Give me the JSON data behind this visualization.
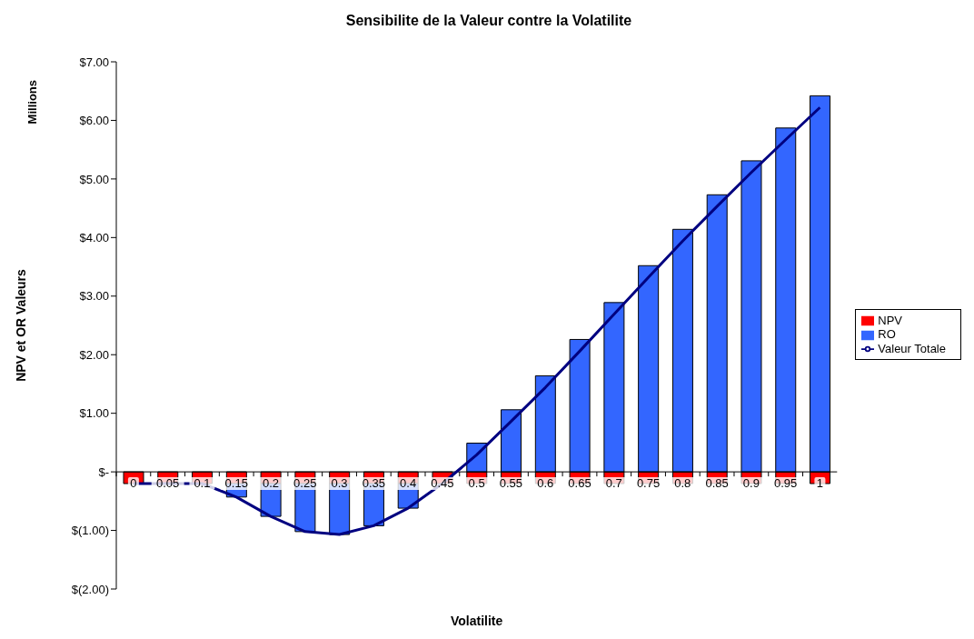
{
  "chart_data": {
    "type": "bar",
    "title": "Sensibilite de la Valeur contre la Volatilite",
    "xlabel": "Volatilite",
    "ylabel": "NPV et OR Valeurs",
    "annotations": [
      "Millions"
    ],
    "categories": [
      "0",
      "0.05",
      "0.1",
      "0.15",
      "0.2",
      "0.25",
      "0.3",
      "0.35",
      "0.4",
      "0.45",
      "0.5",
      "0.55",
      "0.6",
      "0.65",
      "0.7",
      "0.75",
      "0.8",
      "0.85",
      "0.9",
      "0.95",
      "1"
    ],
    "stacked": true,
    "series": [
      {
        "name": "NPV",
        "color": "#ff0000",
        "values": [
          -0.2,
          -0.2,
          -0.2,
          -0.2,
          -0.2,
          -0.2,
          -0.2,
          -0.2,
          -0.2,
          -0.2,
          -0.2,
          -0.2,
          -0.2,
          -0.2,
          -0.2,
          -0.2,
          -0.2,
          -0.2,
          -0.2,
          -0.2,
          -0.2
        ]
      },
      {
        "name": "RO",
        "color": "#3366ff",
        "values": [
          0,
          0,
          0,
          -0.23,
          -0.56,
          -0.82,
          -0.87,
          -0.72,
          -0.42,
          0,
          0.49,
          1.06,
          1.64,
          2.26,
          2.89,
          3.52,
          4.14,
          4.73,
          5.31,
          5.87,
          6.42
        ]
      },
      {
        "name": "Valeur Totale",
        "type": "line",
        "color": "#000080",
        "values": [
          -0.2,
          -0.2,
          -0.2,
          -0.43,
          -0.76,
          -1.02,
          -1.07,
          -0.92,
          -0.62,
          -0.2,
          0.29,
          0.86,
          1.44,
          2.06,
          2.69,
          3.32,
          3.94,
          4.53,
          5.11,
          5.67,
          6.22
        ]
      }
    ],
    "ylim": [
      -2,
      7
    ],
    "yticks": [
      {
        "value": -2,
        "label": "$(2.00)"
      },
      {
        "value": -1,
        "label": "$(1.00)"
      },
      {
        "value": 0,
        "label": "$-"
      },
      {
        "value": 1,
        "label": "$1.00"
      },
      {
        "value": 2,
        "label": "$2.00"
      },
      {
        "value": 3,
        "label": "$3.00"
      },
      {
        "value": 4,
        "label": "$4.00"
      },
      {
        "value": 5,
        "label": "$5.00"
      },
      {
        "value": 6,
        "label": "$6.00"
      },
      {
        "value": 7,
        "label": "$7.00"
      }
    ],
    "grid": false,
    "legend": "right",
    "marker": "none",
    "line_style": "solid"
  }
}
